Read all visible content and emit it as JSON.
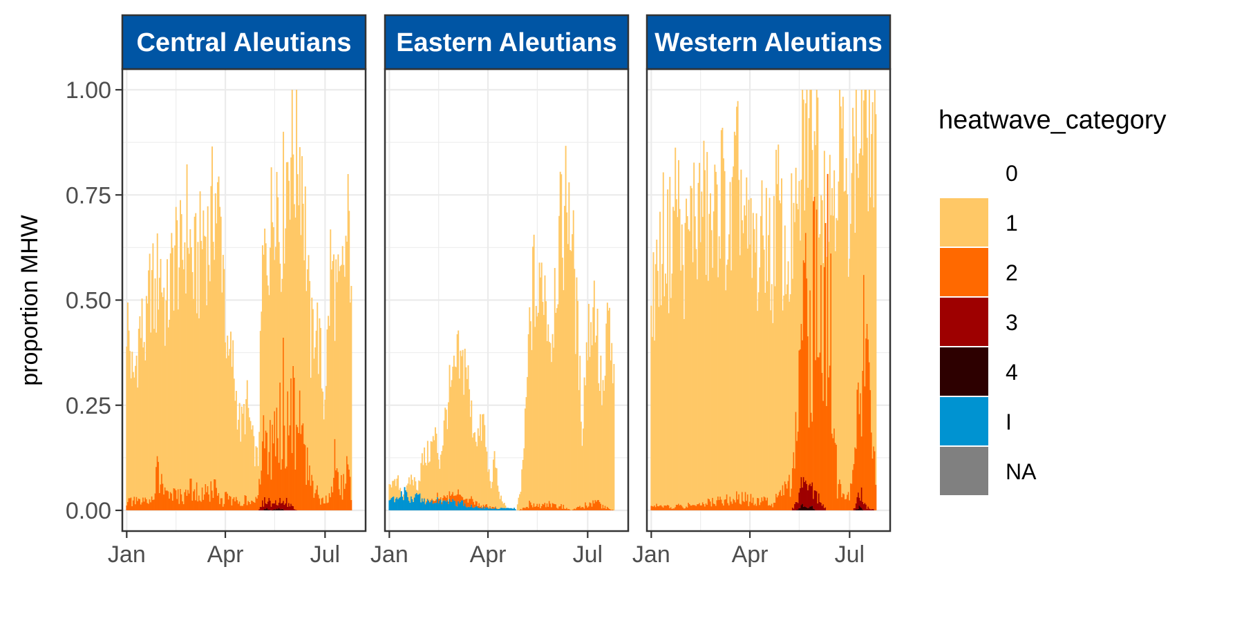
{
  "chart_data": {
    "type": "bar",
    "stacked": true,
    "ylabel": "proportion MHW",
    "xlabel": "",
    "ylim": [
      0,
      1
    ],
    "y_ticks": [
      0,
      0.25,
      0.5,
      0.75,
      1.0
    ],
    "y_tick_labels": [
      "0.00",
      "0.25",
      "0.50",
      "0.75",
      "1.00"
    ],
    "x_domain_day_of_year": [
      -4,
      218
    ],
    "x_ticks": [
      {
        "label": "Jan",
        "day": 0
      },
      {
        "label": "Apr",
        "day": 90
      },
      {
        "label": "Jul",
        "day": 181
      }
    ],
    "x_minor_ticks": [
      45,
      135
    ],
    "bar_day_range": [
      0,
      205
    ],
    "grid": true,
    "legend": {
      "title": "heatwave_category",
      "position": "right",
      "entries": [
        {
          "label": "0",
          "color": "#FFFFFF"
        },
        {
          "label": "1",
          "color": "#FFC866"
        },
        {
          "label": "2",
          "color": "#FF6900"
        },
        {
          "label": "3",
          "color": "#9E0000"
        },
        {
          "label": "4",
          "color": "#2D0000"
        },
        {
          "label": "I",
          "color": "#0093D1"
        },
        {
          "label": "NA",
          "color": "#808080"
        }
      ]
    },
    "colors": {
      "strip_fill": "#0055A4",
      "panel_border": "#333333",
      "grid": "#EBEBEB",
      "cat1": "#FFC866",
      "cat2": "#FF6900",
      "cat3": "#9E0000",
      "cat4": "#2D0000",
      "catI": "#0093D1"
    },
    "facets": [
      {
        "name": "Central Aleutians",
        "cat1_total": {
          "key_days": [
            0,
            3,
            6,
            12,
            18,
            22,
            26,
            30,
            36,
            40,
            44,
            50,
            56,
            60,
            66,
            70,
            76,
            80,
            84,
            88,
            92,
            96,
            100,
            104,
            110,
            116,
            120,
            124,
            128,
            132,
            136,
            140,
            146,
            150,
            154,
            156,
            160,
            164,
            168,
            172,
            176,
            180,
            184,
            186,
            190,
            194,
            198,
            202,
            205
          ],
          "values": [
            0.48,
            0.4,
            0.3,
            0.45,
            0.42,
            0.57,
            0.5,
            0.62,
            0.48,
            0.55,
            0.65,
            0.6,
            0.72,
            0.58,
            0.6,
            0.7,
            0.65,
            0.78,
            0.72,
            0.64,
            0.35,
            0.38,
            0.28,
            0.2,
            0.26,
            0.15,
            0.12,
            0.58,
            0.64,
            0.7,
            0.86,
            0.66,
            0.84,
            0.92,
            0.86,
            0.9,
            0.86,
            0.64,
            0.4,
            0.48,
            0.4,
            0.26,
            0.44,
            0.6,
            0.55,
            0.5,
            0.58,
            0.68,
            0.62
          ]
        },
        "cat2": {
          "key_days": [
            0,
            10,
            20,
            26,
            28,
            32,
            38,
            46,
            56,
            62,
            66,
            72,
            80,
            86,
            90,
            100,
            110,
            118,
            120,
            124,
            126,
            130,
            134,
            138,
            142,
            146,
            150,
            154,
            158,
            162,
            168,
            176,
            186,
            190,
            194,
            198,
            200,
            202,
            205
          ],
          "values": [
            0.02,
            0.02,
            0.02,
            0.06,
            0.1,
            0.06,
            0.04,
            0.03,
            0.04,
            0.06,
            0.03,
            0.04,
            0.05,
            0.02,
            0.03,
            0.02,
            0.03,
            0.02,
            0.03,
            0.12,
            0.16,
            0.1,
            0.22,
            0.13,
            0.25,
            0.2,
            0.28,
            0.18,
            0.2,
            0.12,
            0.09,
            0.03,
            0.03,
            0.14,
            0.05,
            0.06,
            0.08,
            0.11,
            0.03
          ]
        },
        "cat3": {
          "key_days": [
            0,
            120,
            122,
            126,
            130,
            134,
            138,
            142,
            146,
            150,
            156,
            198,
            205
          ],
          "values": [
            0.0,
            0.0,
            0.01,
            0.02,
            0.02,
            0.01,
            0.02,
            0.015,
            0.02,
            0.01,
            0.0,
            0.0,
            0.0
          ]
        },
        "cat4": {
          "key_days": [
            0,
            124,
            128,
            132,
            140,
            144,
            148,
            205
          ],
          "values": [
            0.0,
            0.0,
            0.005,
            0.0,
            0.005,
            0.0,
            0.0,
            0.0
          ]
        },
        "catI": {
          "key_days": [
            0,
            205
          ],
          "values": [
            0,
            0
          ]
        }
      },
      {
        "name": "Eastern Aleutians",
        "cat1_total": {
          "key_days": [
            0,
            4,
            8,
            12,
            16,
            20,
            26,
            30,
            36,
            42,
            46,
            50,
            54,
            58,
            62,
            66,
            70,
            74,
            78,
            82,
            86,
            90,
            94,
            96,
            100,
            104,
            108,
            112,
            116,
            120,
            124,
            128,
            132,
            136,
            140,
            144,
            148,
            152,
            156,
            160,
            164,
            168,
            172,
            176,
            180,
            184,
            188,
            192,
            196,
            200,
            204,
            205
          ],
          "values": [
            0.08,
            0.06,
            0.07,
            0.04,
            0.05,
            0.08,
            0.06,
            0.12,
            0.14,
            0.18,
            0.12,
            0.2,
            0.28,
            0.3,
            0.36,
            0.34,
            0.38,
            0.24,
            0.2,
            0.18,
            0.22,
            0.1,
            0.06,
            0.14,
            0.04,
            0.02,
            0.0,
            0.0,
            0.0,
            0.05,
            0.2,
            0.44,
            0.56,
            0.48,
            0.6,
            0.5,
            0.42,
            0.6,
            0.66,
            0.72,
            0.8,
            0.6,
            0.42,
            0.2,
            0.4,
            0.48,
            0.52,
            0.32,
            0.28,
            0.48,
            0.32,
            0.3
          ]
        },
        "cat2": {
          "key_days": [
            0,
            30,
            50,
            66,
            80,
            100,
            118,
            126,
            130,
            138,
            146,
            150,
            158,
            166,
            176,
            186,
            196,
            205
          ],
          "values": [
            0.0,
            0.0,
            0.01,
            0.02,
            0.01,
            0.0,
            0.0,
            0.01,
            0.02,
            0.01,
            0.02,
            0.01,
            0.01,
            0.0,
            0.01,
            0.02,
            0.01,
            0.0
          ]
        },
        "cat3": {
          "key_days": [
            0,
            205
          ],
          "values": [
            0,
            0
          ]
        },
        "cat4": {
          "key_days": [
            0,
            205
          ],
          "values": [
            0,
            0
          ]
        },
        "catI": {
          "key_days": [
            0,
            3,
            6,
            10,
            14,
            18,
            22,
            26,
            30,
            36,
            42,
            48,
            54,
            58,
            62,
            66,
            70,
            76,
            82,
            90,
            100,
            110,
            114,
            116,
            205
          ],
          "values": [
            0.02,
            0.03,
            0.02,
            0.03,
            0.04,
            0.025,
            0.03,
            0.035,
            0.025,
            0.02,
            0.025,
            0.02,
            0.02,
            0.02,
            0.015,
            0.02,
            0.01,
            0.01,
            0.008,
            0.005,
            0.005,
            0.005,
            0.005,
            0.0,
            0.0
          ]
        }
      },
      {
        "name": "Western Aleutians",
        "cat1_total": {
          "key_days": [
            0,
            4,
            8,
            12,
            16,
            20,
            24,
            28,
            34,
            38,
            42,
            46,
            50,
            56,
            60,
            64,
            68,
            72,
            76,
            80,
            84,
            90,
            94,
            98,
            102,
            106,
            110,
            114,
            118,
            122,
            126,
            130,
            134,
            138,
            142,
            146,
            150,
            154,
            158,
            162,
            166,
            170,
            174,
            178,
            182,
            186,
            190,
            194,
            198,
            202,
            205
          ],
          "values": [
            0.5,
            0.56,
            0.62,
            0.68,
            0.64,
            0.72,
            0.8,
            0.6,
            0.66,
            0.74,
            0.7,
            0.76,
            0.72,
            0.66,
            0.74,
            0.8,
            0.7,
            0.66,
            0.78,
            0.82,
            0.72,
            0.62,
            0.66,
            0.6,
            0.66,
            0.72,
            0.54,
            0.76,
            0.7,
            0.58,
            0.62,
            0.7,
            0.66,
            0.88,
            0.94,
            1.0,
            0.98,
            0.86,
            0.8,
            0.74,
            0.82,
            0.88,
            0.9,
            0.7,
            0.84,
            0.86,
            0.92,
            0.98,
            0.96,
            0.9,
            0.84
          ]
        },
        "cat2": {
          "key_days": [
            0,
            30,
            60,
            80,
            100,
            110,
            118,
            124,
            128,
            132,
            134,
            138,
            142,
            146,
            150,
            154,
            158,
            162,
            166,
            170,
            174,
            178,
            182,
            186,
            190,
            194,
            198,
            200,
            202,
            205
          ],
          "values": [
            0.01,
            0.01,
            0.02,
            0.03,
            0.02,
            0.02,
            0.03,
            0.05,
            0.1,
            0.16,
            0.18,
            0.3,
            0.42,
            0.32,
            0.6,
            0.4,
            0.54,
            0.6,
            0.2,
            0.06,
            0.04,
            0.02,
            0.05,
            0.1,
            0.25,
            0.4,
            0.3,
            0.2,
            0.15,
            0.06
          ]
        },
        "cat3": {
          "key_days": [
            0,
            128,
            132,
            136,
            140,
            144,
            148,
            152,
            156,
            160,
            184,
            188,
            192,
            196,
            205
          ],
          "values": [
            0.0,
            0.0,
            0.02,
            0.04,
            0.06,
            0.04,
            0.05,
            0.03,
            0.02,
            0.0,
            0.0,
            0.02,
            0.04,
            0.01,
            0.0
          ]
        },
        "cat4": {
          "key_days": [
            0,
            132,
            138,
            142,
            146,
            150,
            186,
            190,
            194,
            205
          ],
          "values": [
            0.0,
            0.0,
            0.01,
            0.005,
            0.01,
            0.0,
            0.0,
            0.008,
            0.0,
            0.0
          ]
        },
        "catI": {
          "key_days": [
            0,
            205
          ],
          "values": [
            0,
            0
          ]
        }
      }
    ]
  }
}
